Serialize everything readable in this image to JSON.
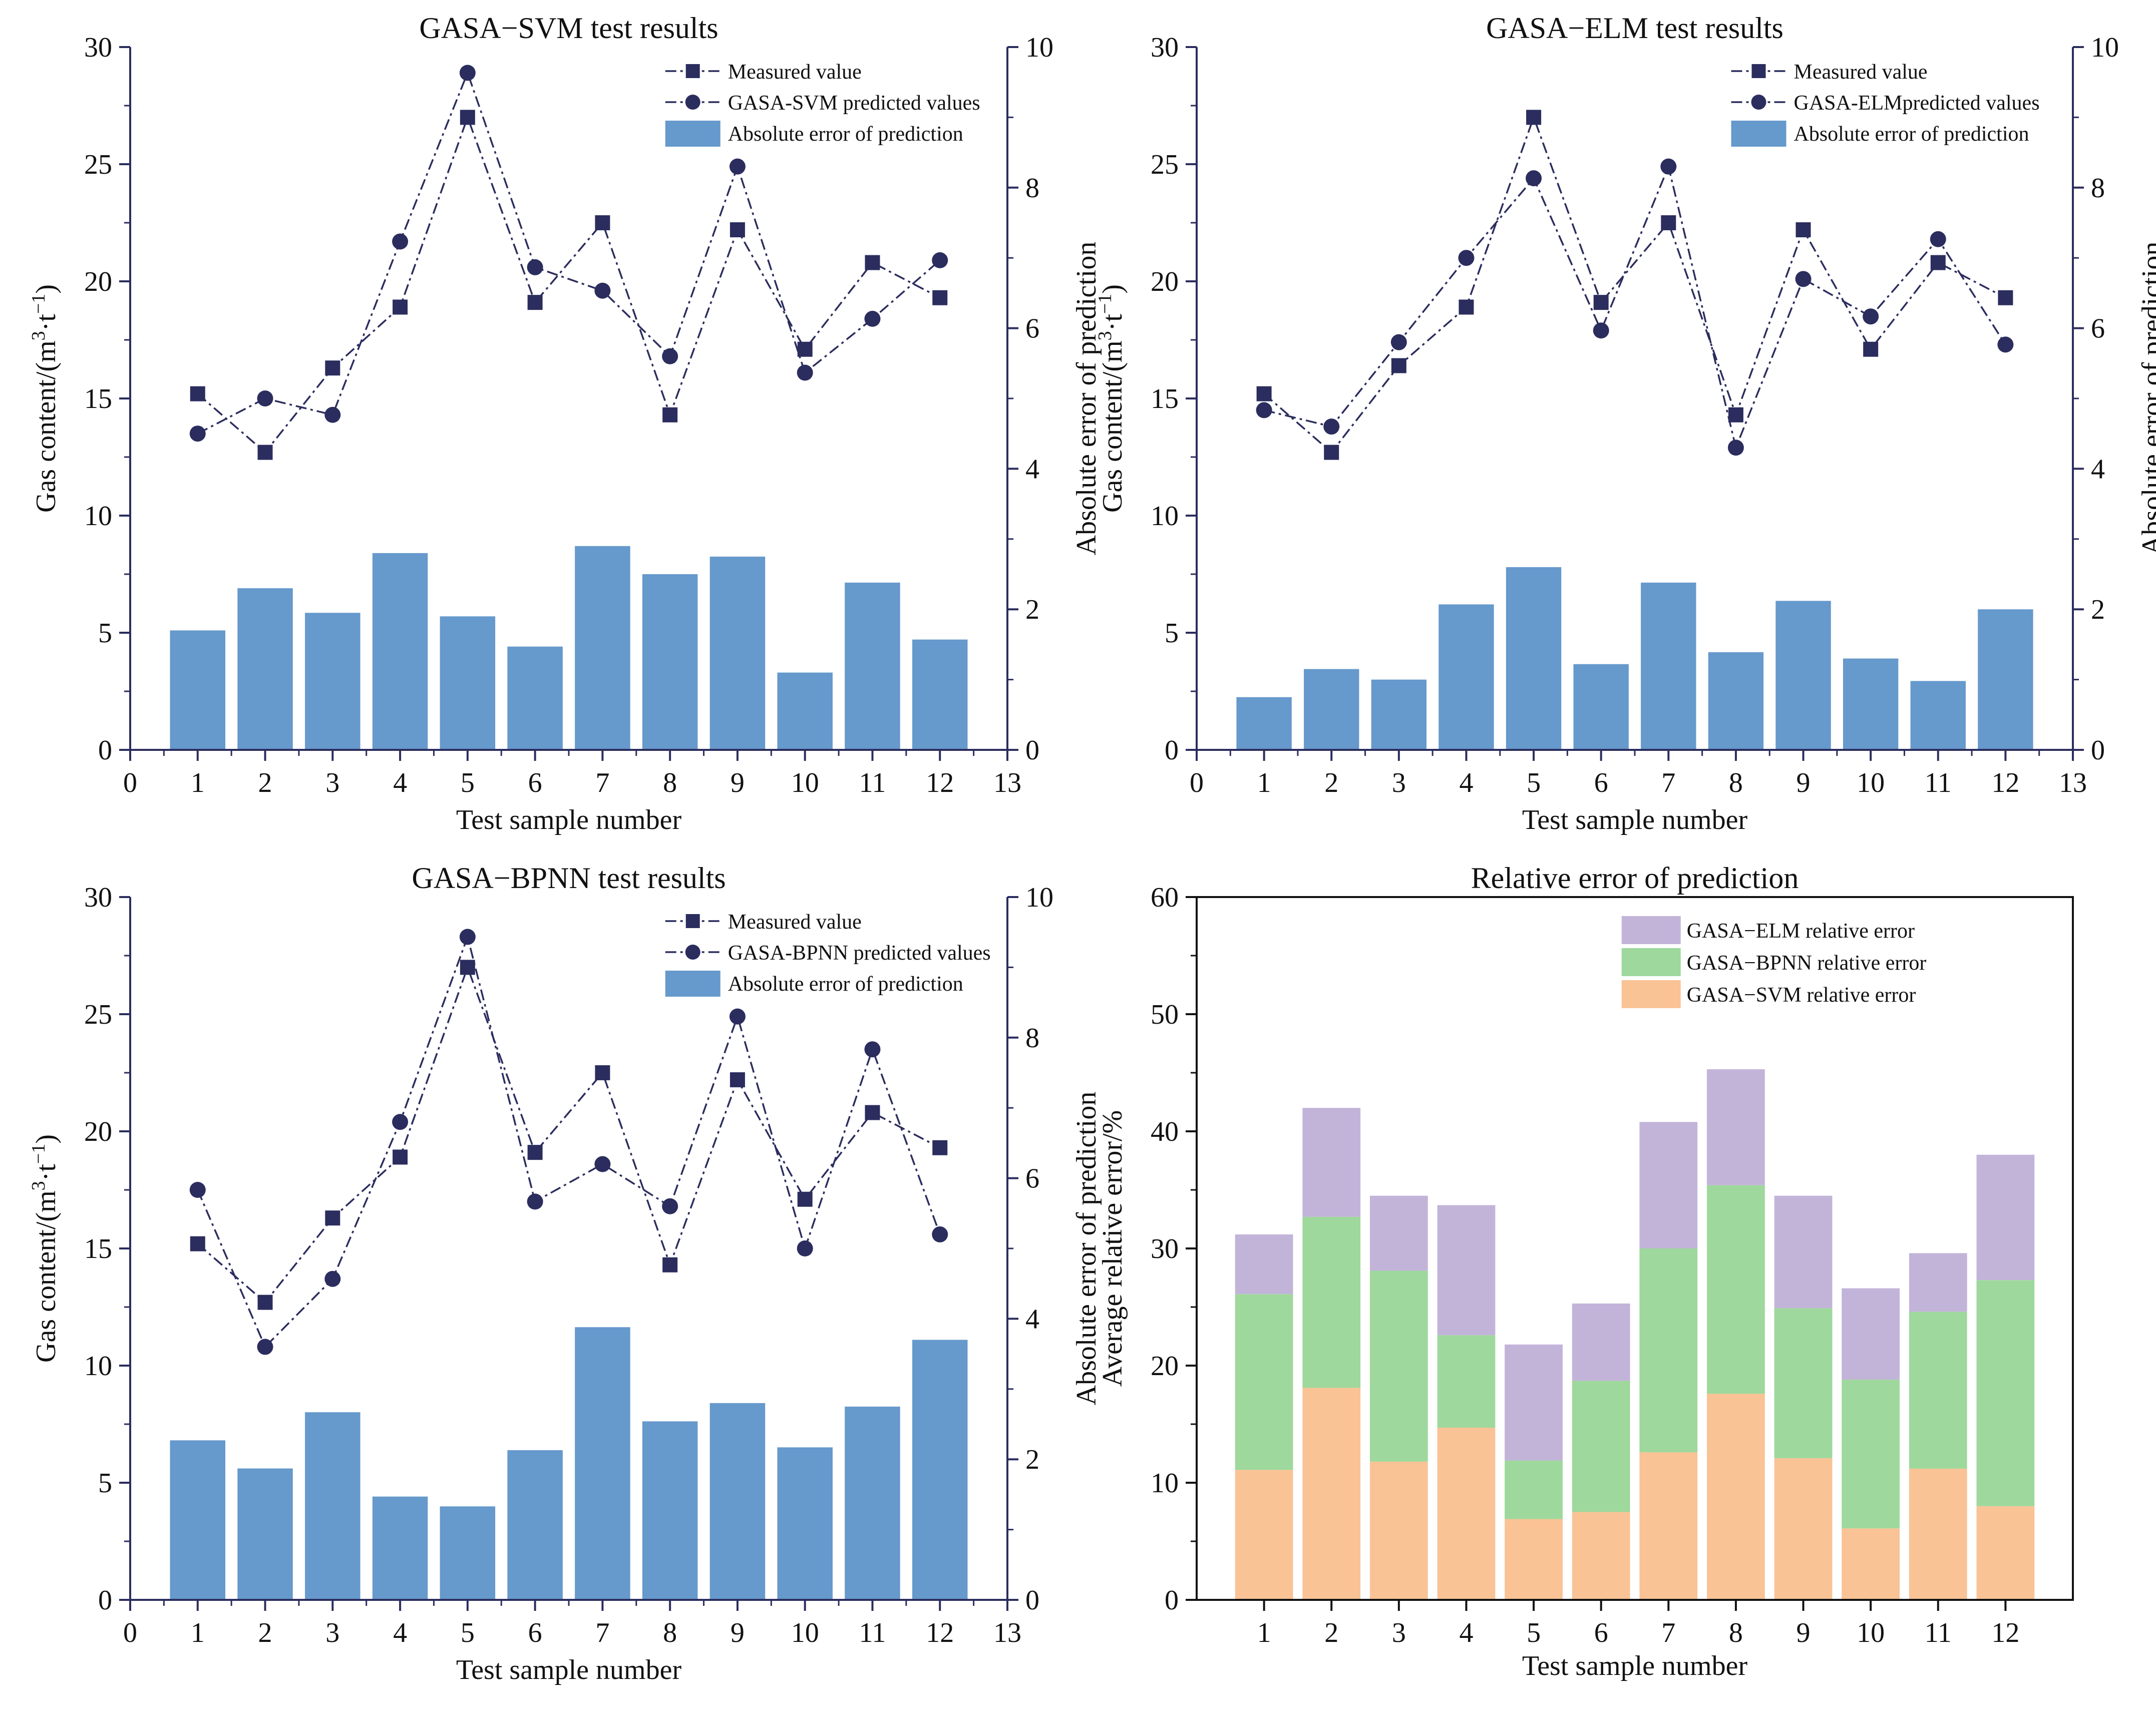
{
  "chart_data": [
    {
      "id": "svm",
      "type": "bar+line",
      "title": "GASA−SVM test results",
      "xlabel": "Test sample number",
      "ylabel": "Gas content/(m³·t⁻¹)",
      "y2label": "Absolute error of prediction",
      "xlim": [
        0,
        13
      ],
      "ylim": [
        0,
        30
      ],
      "y2lim": [
        0,
        10
      ],
      "xticks": [
        "0",
        "1",
        "2",
        "3",
        "4",
        "5",
        "6",
        "7",
        "8",
        "9",
        "10",
        "11",
        "12",
        "13"
      ],
      "yticks": [
        "0",
        "5",
        "10",
        "15",
        "20",
        "25",
        "30"
      ],
      "y2ticks": [
        "0",
        "2",
        "4",
        "6",
        "8",
        "10"
      ],
      "x": [
        1,
        2,
        3,
        4,
        5,
        6,
        7,
        8,
        9,
        10,
        11,
        12
      ],
      "bar_color": "#6699cc",
      "line_color": "#2b2d5e",
      "legend": [
        "Measured value",
        "GASA-SVM predicted values",
        "Absolute error of prediction"
      ],
      "measured": [
        15.2,
        12.7,
        16.3,
        18.9,
        27.0,
        19.1,
        22.5,
        14.3,
        22.2,
        17.1,
        20.8,
        19.3
      ],
      "predicted": [
        13.5,
        15.0,
        14.3,
        21.7,
        28.9,
        20.6,
        19.6,
        16.8,
        24.9,
        16.1,
        18.4,
        20.9
      ],
      "abs_error": [
        1.7,
        2.3,
        1.95,
        2.8,
        1.9,
        1.47,
        2.9,
        2.5,
        2.75,
        1.1,
        2.38,
        1.57
      ]
    },
    {
      "id": "elm",
      "type": "bar+line",
      "title": "GASA−ELM test results",
      "xlabel": "Test sample number",
      "ylabel": "Gas content/(m³·t⁻¹)",
      "y2label": "Absolute error of prediction",
      "xlim": [
        0,
        13
      ],
      "ylim": [
        0,
        30
      ],
      "y2lim": [
        0,
        10
      ],
      "xticks": [
        "0",
        "1",
        "2",
        "3",
        "4",
        "5",
        "6",
        "7",
        "8",
        "9",
        "10",
        "11",
        "12",
        "13"
      ],
      "yticks": [
        "0",
        "5",
        "10",
        "15",
        "20",
        "25",
        "30"
      ],
      "y2ticks": [
        "0",
        "2",
        "4",
        "6",
        "8",
        "10"
      ],
      "x": [
        1,
        2,
        3,
        4,
        5,
        6,
        7,
        8,
        9,
        10,
        11,
        12
      ],
      "bar_color": "#6699cc",
      "line_color": "#2b2d5e",
      "legend": [
        "Measured value",
        "GASA-ELMpredicted values",
        "Absolute error of prediction"
      ],
      "measured": [
        15.2,
        12.7,
        16.4,
        18.9,
        27.0,
        19.1,
        22.5,
        14.3,
        22.2,
        17.1,
        20.8,
        19.3
      ],
      "predicted": [
        14.5,
        13.8,
        17.4,
        21.0,
        24.4,
        17.9,
        24.9,
        12.9,
        20.1,
        18.5,
        21.8,
        17.3
      ],
      "abs_error": [
        0.75,
        1.15,
        1.0,
        2.07,
        2.6,
        1.22,
        2.38,
        1.39,
        2.12,
        1.3,
        0.98,
        2.0
      ]
    },
    {
      "id": "bpnn",
      "type": "bar+line",
      "title": "GASA−BPNN test results",
      "xlabel": "Test sample number",
      "ylabel": "Gas content/(m³·t⁻¹)",
      "y2label": "Absolute error of prediction",
      "xlim": [
        0,
        13
      ],
      "ylim": [
        0,
        30
      ],
      "y2lim": [
        0,
        10
      ],
      "xticks": [
        "0",
        "1",
        "2",
        "3",
        "4",
        "5",
        "6",
        "7",
        "8",
        "9",
        "10",
        "11",
        "12",
        "13"
      ],
      "yticks": [
        "0",
        "5",
        "10",
        "15",
        "20",
        "25",
        "30"
      ],
      "y2ticks": [
        "0",
        "2",
        "4",
        "6",
        "8",
        "10"
      ],
      "x": [
        1,
        2,
        3,
        4,
        5,
        6,
        7,
        8,
        9,
        10,
        11,
        12
      ],
      "bar_color": "#6699cc",
      "line_color": "#2b2d5e",
      "legend": [
        "Measured value",
        "GASA-BPNN predicted values",
        "Absolute error of prediction"
      ],
      "measured": [
        15.2,
        12.7,
        16.3,
        18.9,
        27.0,
        19.1,
        22.5,
        14.3,
        22.2,
        17.1,
        20.8,
        19.3
      ],
      "predicted": [
        17.5,
        10.8,
        13.7,
        20.4,
        28.3,
        17.0,
        18.6,
        16.8,
        24.9,
        15.0,
        23.5,
        15.6
      ],
      "abs_error": [
        2.27,
        1.87,
        2.67,
        1.47,
        1.33,
        2.13,
        3.88,
        2.54,
        2.8,
        2.17,
        2.75,
        3.7
      ]
    },
    {
      "id": "rel",
      "type": "stacked-bar",
      "title": "Relative error of prediction",
      "xlabel": "Test sample number",
      "ylabel": "Average relative error/%",
      "ylim": [
        0,
        60
      ],
      "yticks": [
        "0",
        "10",
        "20",
        "30",
        "40",
        "50",
        "60"
      ],
      "categories": [
        "1",
        "2",
        "3",
        "4",
        "5",
        "6",
        "7",
        "8",
        "9",
        "10",
        "11",
        "12"
      ],
      "series": [
        {
          "name": "GASA−SVM relative error",
          "color": "#f9c396",
          "values": [
            11.1,
            18.1,
            11.8,
            14.7,
            6.9,
            7.5,
            12.6,
            17.6,
            12.1,
            6.1,
            11.2,
            8.0
          ]
        },
        {
          "name": "GASA−BPNN relative error",
          "color": "#9ed89c",
          "values": [
            15.0,
            14.6,
            16.3,
            7.9,
            5.0,
            11.2,
            17.4,
            17.8,
            12.8,
            12.7,
            13.4,
            19.3
          ]
        },
        {
          "name": "GASA−ELM relative error",
          "color": "#c2b4d9",
          "values": [
            5.1,
            9.3,
            6.4,
            11.1,
            9.9,
            6.6,
            10.8,
            9.9,
            9.6,
            7.8,
            5.0,
            10.7
          ]
        }
      ],
      "legend_order": [
        "GASA−ELM relative error",
        "GASA−BPNN relative error",
        "GASA−SVM relative error"
      ]
    }
  ]
}
